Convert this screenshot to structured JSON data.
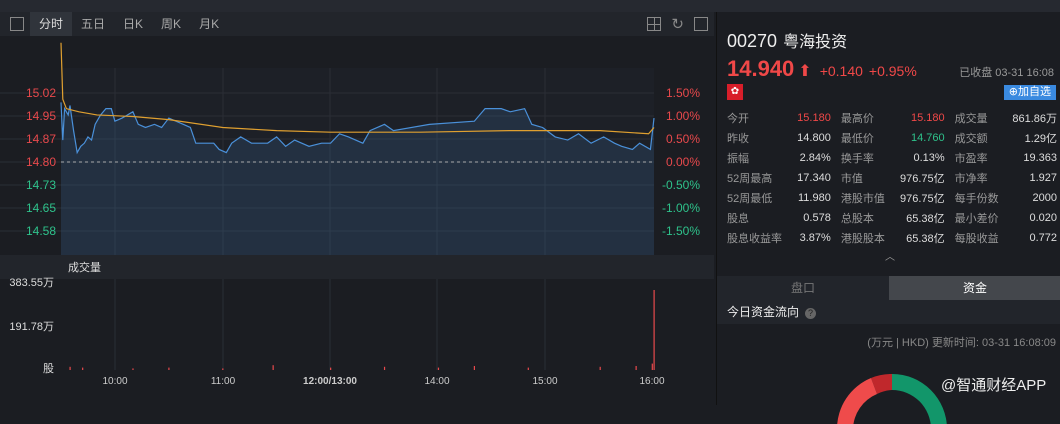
{
  "toolbar": {
    "tabs": [
      "分时",
      "五日",
      "日K",
      "周K",
      "月K"
    ],
    "active": "分时"
  },
  "chart": {
    "price_labels": [
      "15.02",
      "14.95",
      "14.87",
      "14.80",
      "14.73",
      "14.65",
      "14.58"
    ],
    "pct_labels": [
      "1.50%",
      "1.00%",
      "0.50%",
      "0.00%",
      "-0.50%",
      "-1.00%",
      "-1.50%"
    ],
    "prev_close": 14.8,
    "time_labels": [
      "10:00",
      "11:00",
      "12:00/13:00",
      "14:00",
      "15:00",
      "16:00"
    ],
    "volume_title": "成交量",
    "volume_labels": [
      "383.55万",
      "191.78万",
      "股"
    ],
    "price_series": [
      [
        0,
        14.99
      ],
      [
        1,
        14.87
      ],
      [
        2,
        14.97
      ],
      [
        4,
        14.95
      ],
      [
        5,
        14.98
      ],
      [
        7,
        14.9
      ],
      [
        9,
        14.83
      ],
      [
        11,
        14.85
      ],
      [
        13,
        14.86
      ],
      [
        15,
        14.88
      ],
      [
        17,
        14.87
      ],
      [
        19,
        14.92
      ],
      [
        22,
        14.95
      ],
      [
        25,
        14.97
      ],
      [
        28,
        14.97
      ],
      [
        30,
        14.93
      ],
      [
        34,
        14.94
      ],
      [
        40,
        14.96
      ],
      [
        43,
        14.92
      ],
      [
        47,
        14.91
      ],
      [
        52,
        14.92
      ],
      [
        56,
        14.91
      ],
      [
        60,
        14.94
      ],
      [
        68,
        14.92
      ],
      [
        72,
        14.91
      ],
      [
        75,
        14.86
      ],
      [
        85,
        14.86
      ],
      [
        88,
        14.84
      ],
      [
        92,
        14.83
      ],
      [
        95,
        14.86
      ],
      [
        100,
        14.88
      ],
      [
        106,
        14.86
      ],
      [
        115,
        14.86
      ],
      [
        120,
        14.88
      ],
      [
        125,
        14.85
      ],
      [
        130,
        14.87
      ],
      [
        138,
        14.85
      ],
      [
        145,
        14.86
      ],
      [
        150,
        14.86
      ],
      [
        155,
        14.89
      ],
      [
        160,
        14.88
      ],
      [
        168,
        14.86
      ],
      [
        172,
        14.9
      ],
      [
        180,
        14.92
      ],
      [
        185,
        14.9
      ],
      [
        205,
        14.92
      ],
      [
        230,
        14.93
      ],
      [
        236,
        14.97
      ],
      [
        245,
        14.97
      ],
      [
        250,
        14.96
      ],
      [
        258,
        14.97
      ],
      [
        262,
        14.92
      ],
      [
        268,
        14.91
      ],
      [
        275,
        14.88
      ],
      [
        282,
        14.87
      ],
      [
        288,
        14.89
      ],
      [
        295,
        14.86
      ],
      [
        302,
        14.88
      ],
      [
        308,
        14.86
      ],
      [
        312,
        14.85
      ],
      [
        318,
        14.84
      ],
      [
        322,
        14.86
      ],
      [
        328,
        14.84
      ],
      [
        330,
        14.94
      ]
    ],
    "avg_series": [
      [
        0,
        15.18
      ],
      [
        1,
        15.0
      ],
      [
        3,
        14.97
      ],
      [
        10,
        14.96
      ],
      [
        20,
        14.95
      ],
      [
        40,
        14.945
      ],
      [
        60,
        14.935
      ],
      [
        90,
        14.91
      ],
      [
        120,
        14.9
      ],
      [
        150,
        14.895
      ],
      [
        200,
        14.895
      ],
      [
        250,
        14.9
      ],
      [
        300,
        14.9
      ],
      [
        327,
        14.89
      ],
      [
        330,
        14.91
      ]
    ],
    "volume_series": [
      [
        5,
        0.04
      ],
      [
        12,
        0.03
      ],
      [
        40,
        0.02
      ],
      [
        60,
        0.03
      ],
      [
        90,
        0.02
      ],
      [
        118,
        0.06
      ],
      [
        150,
        0.03
      ],
      [
        180,
        0.04
      ],
      [
        210,
        0.03
      ],
      [
        230,
        0.05
      ],
      [
        260,
        0.03
      ],
      [
        300,
        0.04
      ],
      [
        320,
        0.05
      ],
      [
        329,
        0.08
      ],
      [
        330,
        1.0
      ]
    ]
  },
  "quote": {
    "code": "00270",
    "name": "粤海投资",
    "price": "14.940",
    "change": "+0.140",
    "change_pct": "+0.95%",
    "status": "已收盘 03-31 16:08",
    "flag": "✿",
    "add_label": "⊕加自选",
    "rows": [
      [
        [
          "今开",
          "15.180",
          "red"
        ],
        [
          "最高价",
          "15.180",
          "red"
        ],
        [
          "成交量",
          "861.86万",
          ""
        ]
      ],
      [
        [
          "昨收",
          "14.800",
          ""
        ],
        [
          "最低价",
          "14.760",
          "green"
        ],
        [
          "成交额",
          "1.29亿",
          ""
        ]
      ],
      [
        [
          "振幅",
          "2.84%",
          ""
        ],
        [
          "换手率",
          "0.13%",
          ""
        ],
        [
          "市盈率",
          "19.363",
          ""
        ]
      ],
      [
        [
          "52周最高",
          "17.340",
          ""
        ],
        [
          "市值",
          "976.75亿",
          ""
        ],
        [
          "市净率",
          "1.927",
          ""
        ]
      ],
      [
        [
          "52周最低",
          "11.980",
          ""
        ],
        [
          "港股市值",
          "976.75亿",
          ""
        ],
        [
          "每手份数",
          "2000",
          ""
        ]
      ],
      [
        [
          "股息",
          "0.578",
          ""
        ],
        [
          "总股本",
          "65.38亿",
          ""
        ],
        [
          "最小差价",
          "0.020",
          ""
        ]
      ],
      [
        [
          "股息收益率",
          "3.87%",
          ""
        ],
        [
          "港股股本",
          "65.38亿",
          ""
        ],
        [
          "每股收益",
          "0.772",
          ""
        ]
      ]
    ]
  },
  "panel": {
    "tabs": [
      "盘口",
      "资金"
    ],
    "active": "资金",
    "flow_title": "今日资金流向",
    "update": "(万元 | HKD) 更新时间: 03-31 16:08:09",
    "watermark": "@智通财经APP"
  },
  "colors": {
    "up": "#f04848",
    "down": "#2ec28b",
    "line": "#4a90d9",
    "avg": "#e0a030"
  }
}
